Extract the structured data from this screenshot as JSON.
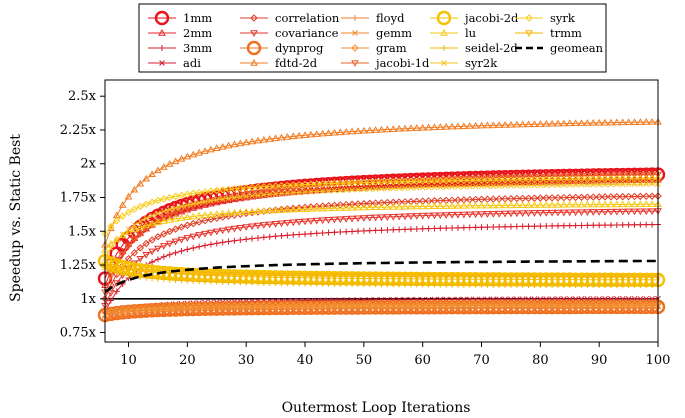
{
  "chart_data": {
    "type": "line",
    "xlabel": "Outermost Loop Iterations",
    "ylabel": "Speedup vs. Static Best",
    "xlim": [
      6,
      100
    ],
    "ylim": [
      0.68,
      2.62
    ],
    "xticks": [
      10,
      20,
      30,
      40,
      50,
      60,
      70,
      80,
      90,
      100
    ],
    "xtick_labels": [
      "10",
      "20",
      "30",
      "40",
      "50",
      "60",
      "70",
      "80",
      "90",
      "100"
    ],
    "yticks": [
      0.75,
      1.0,
      1.25,
      1.5,
      1.75,
      2.0,
      2.25,
      2.5
    ],
    "ytick_labels": [
      "0.75x",
      "1x",
      "1.25x",
      "1.5x",
      "1.75x",
      "2x",
      "2.25x",
      "2.5x"
    ],
    "legend_position": "top",
    "series": [
      {
        "name": "1mm",
        "color": "#e8141c",
        "marker": "circle-big",
        "start": 1.15,
        "end": 1.92
      },
      {
        "name": "2mm",
        "color": "#e02424",
        "marker": "triangle",
        "start": 1.1,
        "end": 1.88
      },
      {
        "name": "3mm",
        "color": "#d81c2c",
        "marker": "plus",
        "start": 0.9,
        "end": 1.55
      },
      {
        "name": "adi",
        "color": "#d02030",
        "marker": "x",
        "start": 0.88,
        "end": 1.0
      },
      {
        "name": "correlation",
        "color": "#e03c24",
        "marker": "diamond",
        "start": 1.0,
        "end": 1.76
      },
      {
        "name": "covariance",
        "color": "#e8342c",
        "marker": "triangle-down",
        "start": 0.95,
        "end": 1.65
      },
      {
        "name": "dynprog",
        "color": "#f07020",
        "marker": "circle-big",
        "start": 0.88,
        "end": 0.94
      },
      {
        "name": "fdtd-2d",
        "color": "#f27a1e",
        "marker": "triangle",
        "start": 1.4,
        "end": 2.31
      },
      {
        "name": "floyd",
        "color": "#f08030",
        "marker": "plus",
        "start": 0.86,
        "end": 0.93
      },
      {
        "name": "gemm",
        "color": "#f08a28",
        "marker": "x",
        "start": 0.88,
        "end": 0.95
      },
      {
        "name": "gram",
        "color": "#f29030",
        "marker": "diamond",
        "start": 0.9,
        "end": 0.96
      },
      {
        "name": "jacobi-1d",
        "color": "#ec6028",
        "marker": "triangle-down",
        "start": 1.05,
        "end": 1.92
      },
      {
        "name": "jacobi-2d",
        "color": "#f5c000",
        "marker": "circle-big",
        "start": 1.28,
        "end": 1.14
      },
      {
        "name": "lu",
        "color": "#f5c814",
        "marker": "triangle",
        "start": 1.36,
        "end": 1.7
      },
      {
        "name": "seidel-2d",
        "color": "#f0b800",
        "marker": "plus",
        "start": 1.22,
        "end": 1.1
      },
      {
        "name": "syr2k",
        "color": "#f5c020",
        "marker": "x",
        "start": 1.3,
        "end": 1.85
      },
      {
        "name": "syrk",
        "color": "#f8cc18",
        "marker": "diamond",
        "start": 1.48,
        "end": 1.89
      },
      {
        "name": "trmm",
        "color": "#f5b400",
        "marker": "triangle-down",
        "start": 1.25,
        "end": 1.16
      },
      {
        "name": "geomean",
        "color": "#000000",
        "marker": "dashed",
        "start": 1.05,
        "end": 1.28
      }
    ],
    "reference_line": 1.0
  }
}
